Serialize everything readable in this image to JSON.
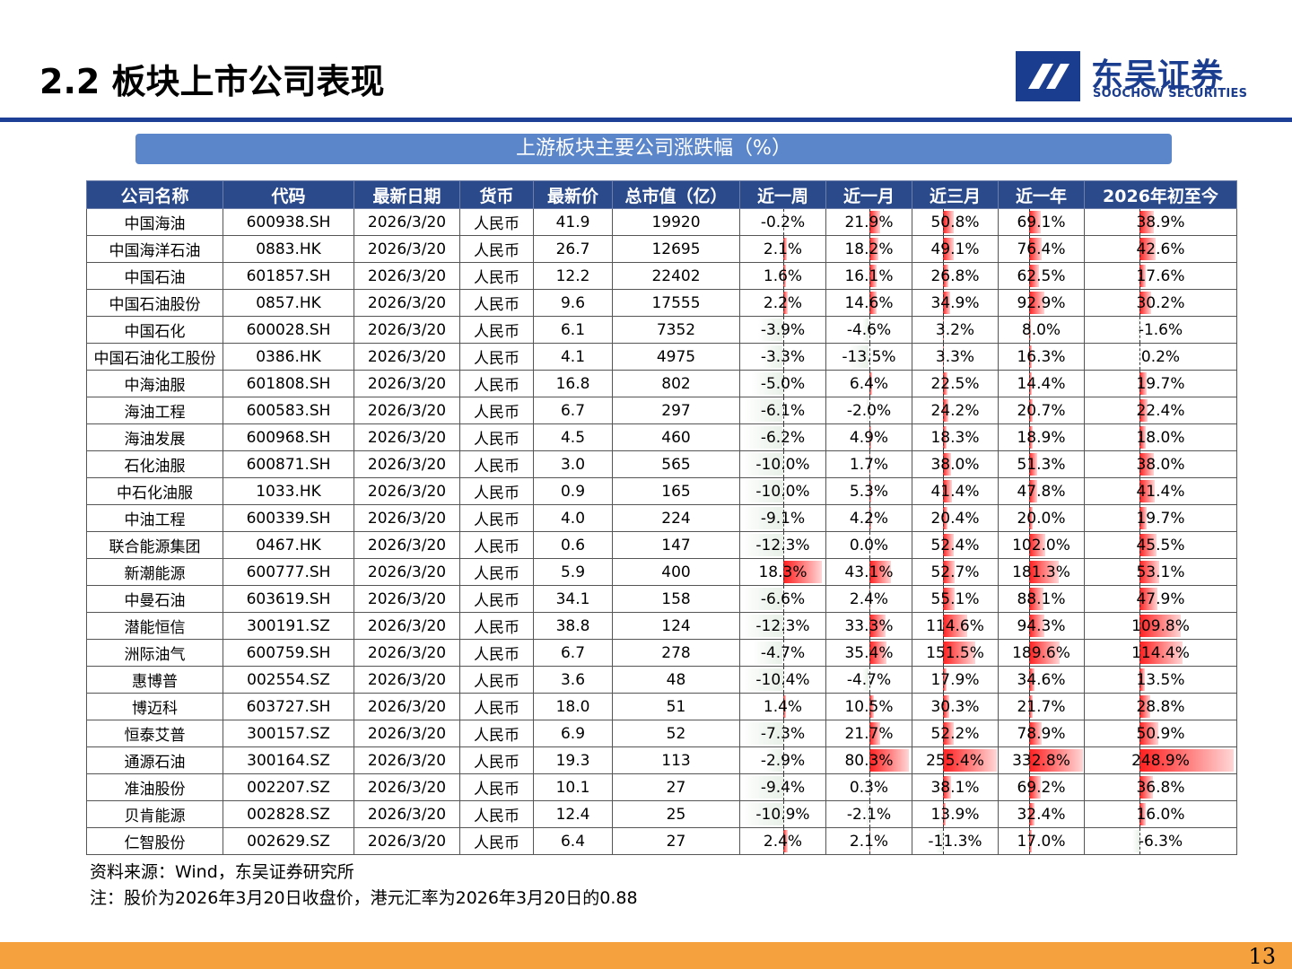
{
  "slide": {
    "title": "2.2 板块上市公司表现",
    "page_number": "13"
  },
  "logo": {
    "cn": "东吴证券",
    "en": "SOOCHOW SECURITIES",
    "colors": {
      "primary": "#1b3d8f"
    }
  },
  "banner": {
    "text": "上游板块主要公司涨跌幅（%）"
  },
  "table": {
    "headers": [
      "公司名称",
      "代码",
      "最新日期",
      "货币",
      "最新价",
      "总市值（亿）",
      "近一周",
      "近一月",
      "近三月",
      "近一年",
      "2026年初至今"
    ],
    "pct_axis_fraction": [
      0.5,
      0.5,
      0.36,
      0.36,
      0.36
    ],
    "pct_max": [
      20,
      85,
      260,
      340,
      255
    ],
    "rows": [
      [
        "中国海油",
        "600938.SH",
        "2026/3/20",
        "人民币",
        "41.9",
        "19920",
        "-0.2%",
        "21.9%",
        "50.8%",
        "69.1%",
        "38.9%"
      ],
      [
        "中国海洋石油",
        "0883.HK",
        "2026/3/20",
        "人民币",
        "26.7",
        "12695",
        "2.1%",
        "18.2%",
        "49.1%",
        "76.4%",
        "42.6%"
      ],
      [
        "中国石油",
        "601857.SH",
        "2026/3/20",
        "人民币",
        "12.2",
        "22402",
        "1.6%",
        "16.1%",
        "26.8%",
        "62.5%",
        "17.6%"
      ],
      [
        "中国石油股份",
        "0857.HK",
        "2026/3/20",
        "人民币",
        "9.6",
        "17555",
        "2.2%",
        "14.6%",
        "34.9%",
        "92.9%",
        "30.2%"
      ],
      [
        "中国石化",
        "600028.SH",
        "2026/3/20",
        "人民币",
        "6.1",
        "7352",
        "-3.9%",
        "-4.6%",
        "3.2%",
        "8.0%",
        "-1.6%"
      ],
      [
        "中国石油化工股份",
        "0386.HK",
        "2026/3/20",
        "人民币",
        "4.1",
        "4975",
        "-3.3%",
        "-13.5%",
        "3.3%",
        "16.3%",
        "0.2%"
      ],
      [
        "中海油服",
        "601808.SH",
        "2026/3/20",
        "人民币",
        "16.8",
        "802",
        "-5.0%",
        "6.4%",
        "22.5%",
        "14.4%",
        "19.7%"
      ],
      [
        "海油工程",
        "600583.SH",
        "2026/3/20",
        "人民币",
        "6.7",
        "297",
        "-6.1%",
        "-2.0%",
        "24.2%",
        "20.7%",
        "22.4%"
      ],
      [
        "海油发展",
        "600968.SH",
        "2026/3/20",
        "人民币",
        "4.5",
        "460",
        "-6.2%",
        "4.9%",
        "18.3%",
        "18.9%",
        "18.0%"
      ],
      [
        "石化油服",
        "600871.SH",
        "2026/3/20",
        "人民币",
        "3.0",
        "565",
        "-10.0%",
        "1.7%",
        "38.0%",
        "51.3%",
        "38.0%"
      ],
      [
        "中石化油服",
        "1033.HK",
        "2026/3/20",
        "人民币",
        "0.9",
        "165",
        "-10.0%",
        "5.3%",
        "41.4%",
        "47.8%",
        "41.4%"
      ],
      [
        "中油工程",
        "600339.SH",
        "2026/3/20",
        "人民币",
        "4.0",
        "224",
        "-9.1%",
        "4.2%",
        "20.4%",
        "20.0%",
        "19.7%"
      ],
      [
        "联合能源集团",
        "0467.HK",
        "2026/3/20",
        "人民币",
        "0.6",
        "147",
        "-12.3%",
        "0.0%",
        "52.4%",
        "102.0%",
        "45.5%"
      ],
      [
        "新潮能源",
        "600777.SH",
        "2026/3/20",
        "人民币",
        "5.9",
        "400",
        "18.3%",
        "43.1%",
        "52.7%",
        "181.3%",
        "53.1%"
      ],
      [
        "中曼石油",
        "603619.SH",
        "2026/3/20",
        "人民币",
        "34.1",
        "158",
        "-6.6%",
        "2.4%",
        "55.1%",
        "88.1%",
        "47.9%"
      ],
      [
        "潜能恒信",
        "300191.SZ",
        "2026/3/20",
        "人民币",
        "38.8",
        "124",
        "-12.3%",
        "33.3%",
        "114.6%",
        "94.3%",
        "109.8%"
      ],
      [
        "洲际油气",
        "600759.SH",
        "2026/3/20",
        "人民币",
        "6.7",
        "278",
        "-4.7%",
        "35.4%",
        "151.5%",
        "189.6%",
        "114.4%"
      ],
      [
        "惠博普",
        "002554.SZ",
        "2026/3/20",
        "人民币",
        "3.6",
        "48",
        "-10.4%",
        "-4.7%",
        "17.9%",
        "34.6%",
        "13.5%"
      ],
      [
        "博迈科",
        "603727.SH",
        "2026/3/20",
        "人民币",
        "18.0",
        "51",
        "1.4%",
        "10.5%",
        "30.3%",
        "21.7%",
        "28.8%"
      ],
      [
        "恒泰艾普",
        "300157.SZ",
        "2026/3/20",
        "人民币",
        "6.9",
        "52",
        "-7.3%",
        "21.7%",
        "52.2%",
        "78.9%",
        "50.9%"
      ],
      [
        "通源石油",
        "300164.SZ",
        "2026/3/20",
        "人民币",
        "19.3",
        "113",
        "-2.9%",
        "80.3%",
        "255.4%",
        "332.8%",
        "248.9%"
      ],
      [
        "准油股份",
        "002207.SZ",
        "2026/3/20",
        "人民币",
        "10.1",
        "27",
        "-9.4%",
        "0.3%",
        "38.1%",
        "69.2%",
        "36.8%"
      ],
      [
        "贝肯能源",
        "002828.SZ",
        "2026/3/20",
        "人民币",
        "12.4",
        "25",
        "-10.9%",
        "-2.1%",
        "13.9%",
        "32.4%",
        "16.0%"
      ],
      [
        "仁智股份",
        "002629.SZ",
        "2026/3/20",
        "人民币",
        "6.4",
        "27",
        "2.4%",
        "2.1%",
        "-11.3%",
        "17.0%",
        "-6.3%"
      ]
    ]
  },
  "footnotes": {
    "source": "资料来源：Wind，东吴证券研究所",
    "note": "注：股价为2026年3月20日收盘价，港元汇率为2026年3月20日的0.88"
  },
  "colors": {
    "header_bg": "#2b4a8c",
    "banner_bg": "#5b86c9",
    "rule": "#1d3f96",
    "footer": "#f5a23e",
    "bar_positive": "#ff1f1f"
  }
}
